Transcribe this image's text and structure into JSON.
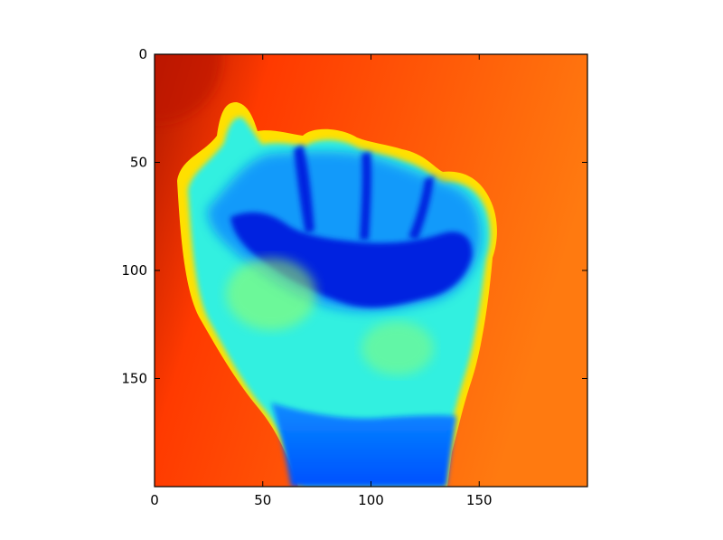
{
  "chart_data": {
    "type": "heatmap",
    "title": "",
    "xlabel": "",
    "ylabel": "",
    "image_size": [
      200,
      200
    ],
    "colormap": "jet",
    "xlim": [
      0,
      200
    ],
    "ylim": [
      200,
      0
    ],
    "y_axis_inverted": true,
    "grid": false,
    "legend": "none",
    "xticks": [
      0,
      50,
      100,
      150
    ],
    "yticks": [
      0,
      50,
      100,
      150
    ],
    "xtick_labels": [
      "0",
      "50",
      "100",
      "150"
    ],
    "ytick_labels": [
      "0",
      "50",
      "100",
      "150"
    ],
    "subject": "grayscale photo of a clenched fist rendered with jet colormap",
    "colors": {
      "background_dark": "#b01800",
      "background": "#ff3a00",
      "background_light": "#ff7a10",
      "hand_edge": "#ffe000",
      "hand_palm": "#30f0e0",
      "hand_mid": "#0a8cff",
      "fingers_shadow": "#0020e0",
      "wrist": "#0050ff"
    }
  }
}
